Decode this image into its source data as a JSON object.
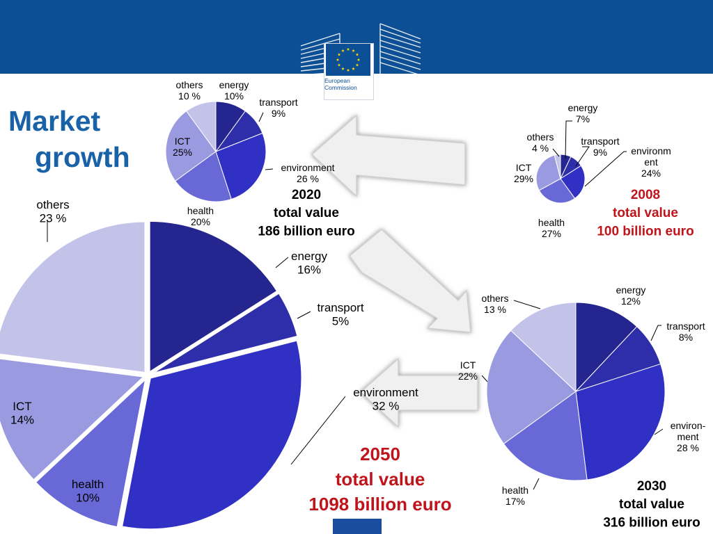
{
  "page": {
    "title_line1": "Market",
    "title_line2": "growth",
    "logo_text_line1": "European",
    "logo_text_line2": "Commission"
  },
  "colors": {
    "header": "#0c4f94",
    "energy": "#25258f",
    "transport": "#2e2eaa",
    "environment": "#3030c5",
    "health": "#6868d6",
    "ict": "#9a9ae0",
    "others": "#c3c3ea",
    "highlight_text": "#c0141c",
    "arrow_fill": "#f0f0f0"
  },
  "chart_data": [
    {
      "type": "pie",
      "year": "2008",
      "line2": "total value",
      "line3": "100 billion euro",
      "title_color": "red",
      "slices": [
        {
          "label": "energy",
          "value": 7,
          "value_text": "7%"
        },
        {
          "label": "transport",
          "value": 9,
          "value_text": "9%"
        },
        {
          "label": "environm ent",
          "value": 24,
          "value_text": "24%"
        },
        {
          "label": "health",
          "value": 27,
          "value_text": "27%"
        },
        {
          "label": "ICT",
          "value": 29,
          "value_text": "29%"
        },
        {
          "label": "others",
          "value": 4,
          "value_text": "4 %"
        }
      ]
    },
    {
      "type": "pie",
      "year": "2020",
      "line2": "total value",
      "line3": "186 billion euro",
      "title_color": "black",
      "slices": [
        {
          "label": "energy",
          "value": 10,
          "value_text": "10%"
        },
        {
          "label": "transport",
          "value": 9,
          "value_text": "9%"
        },
        {
          "label": "environment",
          "value": 26,
          "value_text": "26 %"
        },
        {
          "label": "health",
          "value": 20,
          "value_text": "20%"
        },
        {
          "label": "ICT",
          "value": 25,
          "value_text": "25%"
        },
        {
          "label": "others",
          "value": 10,
          "value_text": "10 %"
        }
      ]
    },
    {
      "type": "pie",
      "year": "2030",
      "line2": "total value",
      "line3": "316 billion euro",
      "title_color": "black",
      "slices": [
        {
          "label": "energy",
          "value": 12,
          "value_text": "12%"
        },
        {
          "label": "transport",
          "value": 8,
          "value_text": "8%"
        },
        {
          "label": "environ- ment",
          "value": 28,
          "value_text": "28 %"
        },
        {
          "label": "health",
          "value": 17,
          "value_text": "17%"
        },
        {
          "label": "ICT",
          "value": 22,
          "value_text": "22%"
        },
        {
          "label": "others",
          "value": 13,
          "value_text": "13 %"
        }
      ]
    },
    {
      "type": "pie",
      "year": "2050",
      "line2": "total value",
      "line3": "1098 billion euro",
      "title_color": "red",
      "exploded": true,
      "slices": [
        {
          "label": "energy",
          "value": 16,
          "value_text": "16%"
        },
        {
          "label": "transport",
          "value": 5,
          "value_text": "5%"
        },
        {
          "label": "environment",
          "value": 32,
          "value_text": "32 %"
        },
        {
          "label": "health",
          "value": 10,
          "value_text": "10%"
        },
        {
          "label": "ICT",
          "value": 14,
          "value_text": "14%"
        },
        {
          "label": "others",
          "value": 23,
          "value_text": "23 %"
        }
      ]
    }
  ]
}
